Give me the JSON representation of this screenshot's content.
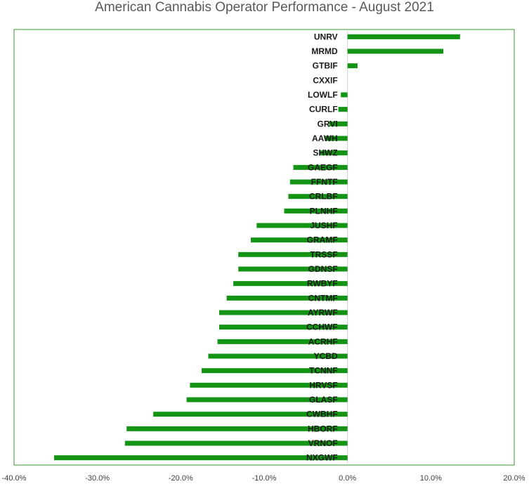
{
  "chart_data": {
    "type": "bar",
    "orientation": "horizontal",
    "title": "American Cannabis Operator Performance - August 2021",
    "xlabel": "",
    "ylabel": "",
    "xlim": [
      -40,
      20
    ],
    "x_ticks": [
      "-40.0%",
      "-30.0%",
      "-20.0%",
      "-10.0%",
      "0.0%",
      "10.0%",
      "20.0%"
    ],
    "x_tick_values": [
      -40,
      -30,
      -20,
      -10,
      0,
      10,
      20
    ],
    "grid": false,
    "legend": "none",
    "bar_color": "#149414",
    "frame_color": "#2e9e2e",
    "categories": [
      "UNRV",
      "MRMD",
      "GTBIF",
      "CXXIF",
      "LOWLF",
      "CURLF",
      "GRVI",
      "AAWH",
      "SHWZ",
      "GAEGF",
      "FFNTF",
      "CRLBF",
      "PLNHF",
      "JUSHF",
      "GRAMF",
      "TRSSF",
      "GDNSF",
      "RWBYF",
      "CNTMF",
      "AYRWF",
      "CCHWF",
      "ACRHF",
      "YCBD",
      "TCNNF",
      "HRVSF",
      "GLASF",
      "CWBHF",
      "HBORF",
      "VRNOF",
      "NXGWF"
    ],
    "values": [
      13.5,
      11.5,
      1.2,
      0.0,
      -0.8,
      -1.1,
      -2.2,
      -2.7,
      -3.3,
      -6.5,
      -6.9,
      -7.1,
      -7.6,
      -10.9,
      -11.6,
      -13.1,
      -13.1,
      -13.7,
      -14.5,
      -15.4,
      -15.4,
      -15.6,
      -16.7,
      -17.5,
      -18.9,
      -19.3,
      -23.3,
      -26.5,
      -26.7,
      -35.2
    ]
  }
}
